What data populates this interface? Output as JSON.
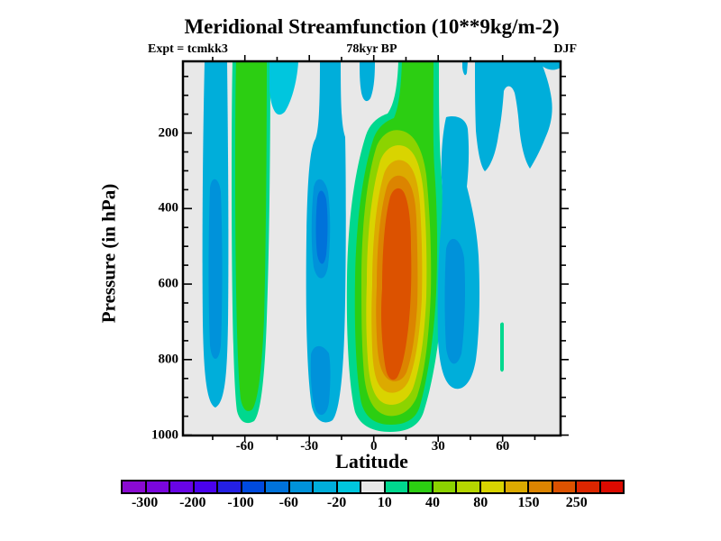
{
  "title": "Meridional Streamfunction (10**9kg/m-2)",
  "annotations": {
    "experiment": "Expt = tcmkk3",
    "time": "78kyr BP",
    "season": "DJF"
  },
  "axes": {
    "x": {
      "label": "Latitude",
      "tick_labels": [
        "-60",
        "-30",
        "0",
        "30",
        "60"
      ],
      "tick_values": [
        -60,
        -30,
        0,
        30,
        60
      ]
    },
    "y": {
      "label": "Pressure (in hPa)",
      "tick_labels": [
        "200",
        "400",
        "600",
        "800",
        "1000"
      ],
      "tick_values": [
        200,
        400,
        600,
        800,
        1000
      ]
    }
  },
  "colorbar": {
    "labels": [
      "-300",
      "-200",
      "-100",
      "-60",
      "-20",
      "10",
      "40",
      "80",
      "150",
      "250"
    ],
    "label_boundary_indices": [
      1,
      3,
      5,
      7,
      9,
      11,
      13,
      15,
      17,
      19
    ],
    "colors": [
      "#8A0AD2",
      "#7A06DE",
      "#6804E6",
      "#4A02EE",
      "#2420E4",
      "#004ADE",
      "#0072DA",
      "#0092DA",
      "#00AEDA",
      "#00C6DE",
      "#E8E8E8",
      "#00D88E",
      "#2CCE12",
      "#8CD300",
      "#B6D600",
      "#D9D400",
      "#DCAA00",
      "#DC8400",
      "#DC5200",
      "#DC2600",
      "#DC0A00"
    ]
  },
  "chart_data": {
    "type": "heatmap",
    "subtype": "filled-contour",
    "title": "Meridional Streamfunction (10**9kg/m-2)",
    "xlabel": "Latitude",
    "ylabel": "Pressure (in hPa)",
    "x_ticks": [
      -60,
      -30,
      0,
      30,
      60
    ],
    "y_ticks": [
      200,
      400,
      600,
      800,
      1000
    ],
    "x_range": [
      -89,
      87
    ],
    "y_range_hPa": [
      10,
      1000
    ],
    "units": "10**9 kg/m-2",
    "labeled_contour_levels": [
      -300,
      -200,
      -100,
      -60,
      -20,
      10,
      40,
      80,
      150,
      250
    ],
    "background_value_range": [
      -10,
      10
    ],
    "legend_position": "bottom",
    "grid": false,
    "features": [
      {
        "name": "negative cyan band (south polar)",
        "lat_range": [
          -78,
          -67
        ],
        "pressure_range": [
          10,
          930
        ],
        "value_range": [
          -60,
          -20
        ]
      },
      {
        "name": "positive green band (southern mid-latitudes)",
        "lat_range": [
          -65,
          -50
        ],
        "pressure_range": [
          10,
          970
        ],
        "value_range": [
          20,
          40
        ]
      },
      {
        "name": "negative cyan band (southern tropics)",
        "lat_range": [
          -32,
          -14
        ],
        "pressure_range": [
          10,
          975
        ],
        "value_range": [
          -80,
          -20
        ]
      },
      {
        "name": "main positive cell (Hadley circulation)",
        "lat_range": [
          -13,
          32
        ],
        "pressure_range": [
          155,
          990
        ],
        "peak_value_range": [
          200,
          250
        ],
        "peak_location": {
          "lat": 8,
          "pressure_hPa": [
            300,
            850
          ]
        }
      },
      {
        "name": "negative cyan cell (northern subtropics)",
        "lat_range": [
          30,
          49
        ],
        "pressure_range": [
          160,
          870
        ],
        "value_range": [
          -60,
          -20
        ]
      },
      {
        "name": "negative cyan patches (northern upper troposphere)",
        "lat_range": [
          45,
          87
        ],
        "pressure_range": [
          10,
          310
        ],
        "value_range": [
          -40,
          -20
        ]
      }
    ]
  }
}
